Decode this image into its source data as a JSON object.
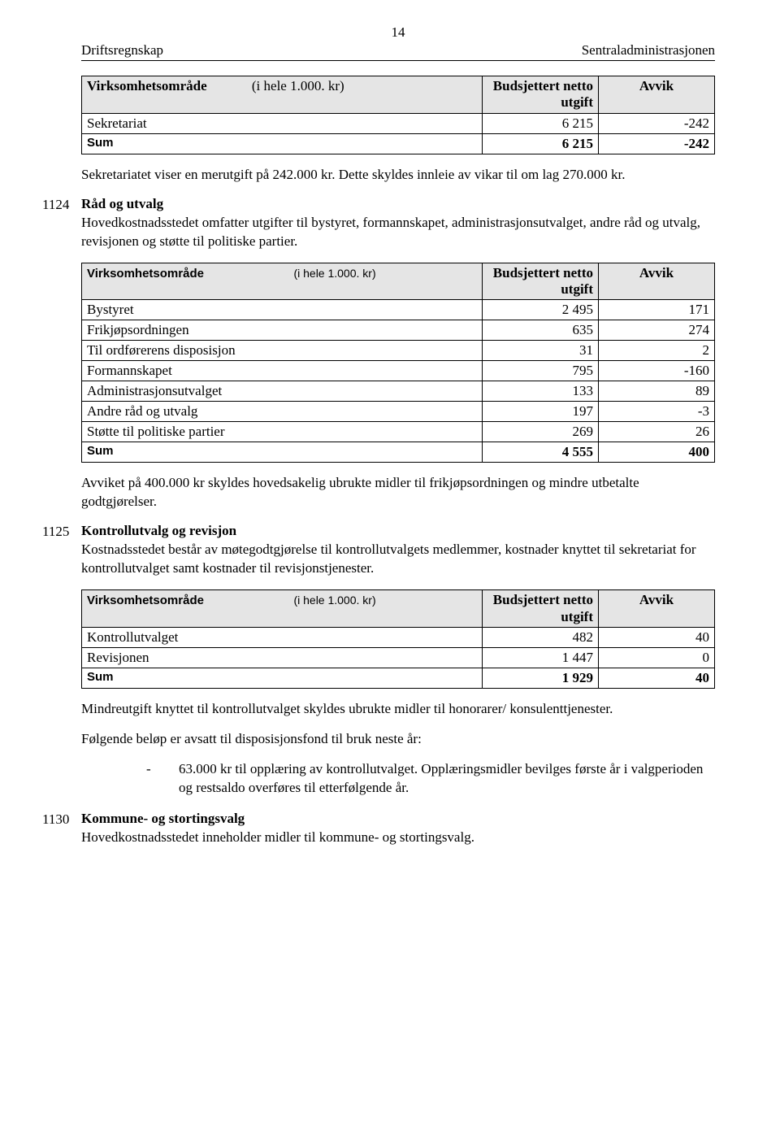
{
  "page_number": "14",
  "header_left": "Driftsregnskap",
  "header_right": "Sentraladministrasjonen",
  "common": {
    "area_label": "Virksomhetsområde",
    "unit_label": "(i hele 1.000. kr)",
    "budget_col_l1": "Budsjettert netto",
    "budget_col_l2": "utgift",
    "deviation_col": "Avvik",
    "sum_label": "Sum"
  },
  "table1": {
    "rows": [
      {
        "label": "Sekretariat",
        "budget": "6 215",
        "dev": "-242"
      }
    ],
    "sum": {
      "budget": "6 215",
      "dev": "-242"
    }
  },
  "para_after_t1": "Sekretariatet viser en merutgift på 242.000 kr. Dette skyldes innleie av vikar til om lag 270.000 kr.",
  "section_1124": {
    "code": "1124",
    "title": "Råd og utvalg",
    "desc": "Hovedkostnadsstedet omfatter utgifter til bystyret, formannskapet, administrasjonsutvalget, andre råd og utvalg, revisjonen og støtte til politiske partier."
  },
  "table2": {
    "rows": [
      {
        "label": "Bystyret",
        "budget": "2 495",
        "dev": "171"
      },
      {
        "label": "Frikjøpsordningen",
        "budget": "635",
        "dev": "274"
      },
      {
        "label": "Til ordførerens disposisjon",
        "budget": "31",
        "dev": "2"
      },
      {
        "label": "Formannskapet",
        "budget": "795",
        "dev": "-160"
      },
      {
        "label": "Administrasjonsutvalget",
        "budget": "133",
        "dev": "89"
      },
      {
        "label": "Andre råd og utvalg",
        "budget": "197",
        "dev": "-3"
      },
      {
        "label": "Støtte til politiske partier",
        "budget": "269",
        "dev": "26"
      }
    ],
    "sum": {
      "budget": "4 555",
      "dev": "400"
    }
  },
  "para_after_t2": "Avviket på 400.000 kr skyldes hovedsakelig ubrukte midler til frikjøpsordningen og mindre utbetalte godtgjørelser.",
  "section_1125": {
    "code": "1125",
    "title": "Kontrollutvalg og revisjon",
    "desc": "Kostnadsstedet består av møtegodtgjørelse til kontrollutvalgets medlemmer, kostnader knyttet til sekretariat for kontrollutvalget samt kostnader til revisjonstjenester."
  },
  "table3": {
    "rows": [
      {
        "label": "Kontrollutvalget",
        "budget": "482",
        "dev": "40"
      },
      {
        "label": "Revisjonen",
        "budget": "1 447",
        "dev": "0"
      }
    ],
    "sum": {
      "budget": "1 929",
      "dev": "40"
    }
  },
  "para_after_t3_a": "Mindreutgift knyttet til kontrollutvalget skyldes ubrukte midler til honorarer/ konsulenttjenester.",
  "para_after_t3_b": "Følgende beløp er avsatt til disposisjonsfond til bruk neste år:",
  "bullet": {
    "dash": "-",
    "text": "63.000 kr til opplæring av kontrollutvalget. Opplæringsmidler bevilges første år i valgperioden og restsaldo overføres til etterfølgende år."
  },
  "section_1130": {
    "code": "1130",
    "title": "Kommune- og stortingsvalg",
    "desc": "Hovedkostnadsstedet inneholder midler til kommune- og stortingsvalg."
  }
}
